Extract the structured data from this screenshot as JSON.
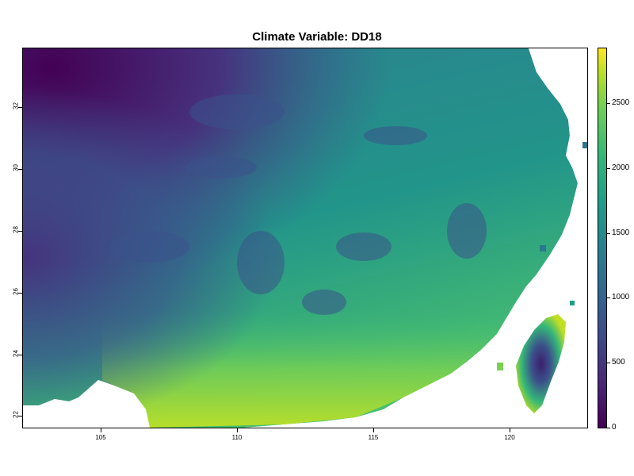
{
  "title": "Climate Variable: DD18",
  "x_ticks": [
    "105",
    "110",
    "115",
    "120"
  ],
  "y_ticks": [
    "22",
    "24",
    "26",
    "28",
    "30",
    "32"
  ],
  "legend_ticks": [
    "0",
    "500",
    "1000",
    "1500",
    "2000",
    "2500"
  ],
  "colors": {
    "low": "#440154",
    "mid": "#21918c",
    "high": "#fde725",
    "no_data": "#ffffff"
  }
}
